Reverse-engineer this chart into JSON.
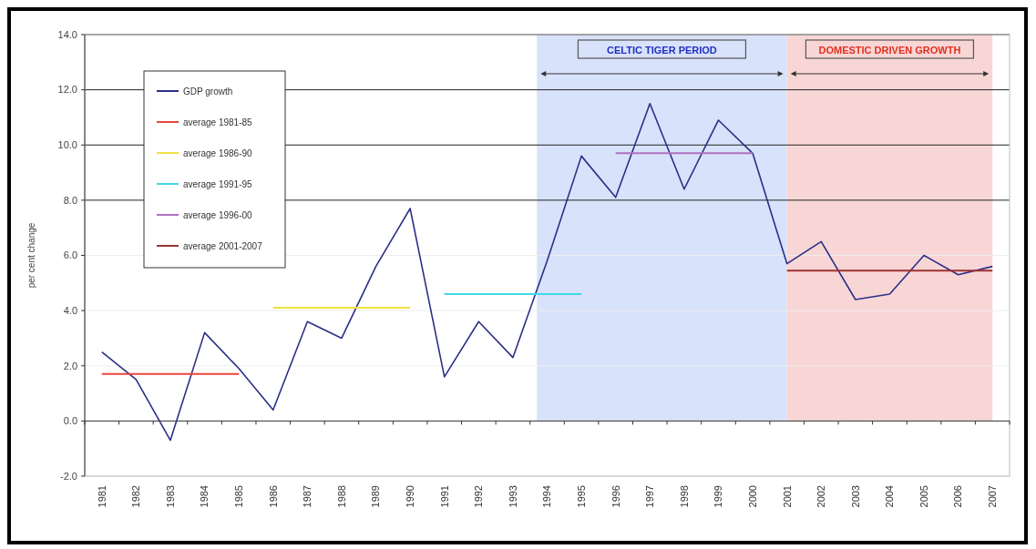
{
  "chart_data": {
    "type": "line",
    "ylabel": "per cent change",
    "categories": [
      "1981",
      "1982",
      "1983",
      "1984",
      "1985",
      "1986",
      "1987",
      "1988",
      "1989",
      "1990",
      "1991",
      "1992",
      "1993",
      "1994",
      "1995",
      "1996",
      "1997",
      "1998",
      "1999",
      "2000",
      "2001",
      "2002",
      "2003",
      "2004",
      "2005",
      "2006",
      "2007"
    ],
    "series": [
      {
        "name": "GDP growth",
        "color": "#2b2f86",
        "values": [
          2.5,
          1.5,
          -0.7,
          3.2,
          1.9,
          0.4,
          3.6,
          3.0,
          5.6,
          7.7,
          1.6,
          3.6,
          2.3,
          5.8,
          9.6,
          8.1,
          11.5,
          8.4,
          10.9,
          9.7,
          5.7,
          6.5,
          4.4,
          4.6,
          6.0,
          5.3,
          5.6
        ]
      },
      {
        "name": "average 1981-85",
        "color": "#e8453c",
        "values": [
          1.7,
          1.7,
          1.7,
          1.7,
          1.7,
          null,
          null,
          null,
          null,
          null,
          null,
          null,
          null,
          null,
          null,
          null,
          null,
          null,
          null,
          null,
          null,
          null,
          null,
          null,
          null,
          null,
          null
        ]
      },
      {
        "name": "average 1986-90",
        "color": "#f0e040",
        "values": [
          null,
          null,
          null,
          null,
          null,
          4.1,
          4.1,
          4.1,
          4.1,
          4.1,
          null,
          null,
          null,
          null,
          null,
          null,
          null,
          null,
          null,
          null,
          null,
          null,
          null,
          null,
          null,
          null,
          null
        ]
      },
      {
        "name": "average 1991-95",
        "color": "#40d8e8",
        "values": [
          null,
          null,
          null,
          null,
          null,
          null,
          null,
          null,
          null,
          null,
          4.6,
          4.6,
          4.6,
          4.6,
          4.6,
          null,
          null,
          null,
          null,
          null,
          null,
          null,
          null,
          null,
          null,
          null,
          null
        ]
      },
      {
        "name": "average 1996-00",
        "color": "#b070c0",
        "values": [
          null,
          null,
          null,
          null,
          null,
          null,
          null,
          null,
          null,
          null,
          null,
          null,
          null,
          null,
          null,
          9.7,
          9.7,
          9.7,
          9.7,
          9.7,
          null,
          null,
          null,
          null,
          null,
          null,
          null
        ]
      },
      {
        "name": "average 2001-2007",
        "color": "#a03030",
        "values": [
          null,
          null,
          null,
          null,
          null,
          null,
          null,
          null,
          null,
          null,
          null,
          null,
          null,
          null,
          null,
          null,
          null,
          null,
          null,
          null,
          5.45,
          5.45,
          5.45,
          5.45,
          5.45,
          5.45,
          5.45
        ]
      }
    ],
    "bands": [
      {
        "axis": "x",
        "from": "1994",
        "to": "2001",
        "label": "CELTIC TIGER PERIOD",
        "color": "#d8e2fa"
      },
      {
        "axis": "x",
        "from": "2001",
        "to": "2007",
        "label": "DOMESTIC DRIVEN GROWTH",
        "color": "#f8d6d6"
      }
    ],
    "ylim": [
      -2,
      14
    ],
    "yticks": [
      {
        "value": -2,
        "label": "-2.0"
      },
      {
        "value": 0,
        "label": "0.0"
      },
      {
        "value": 2,
        "label": "2.0"
      },
      {
        "value": 4,
        "label": "4.0"
      },
      {
        "value": 6,
        "label": "6.0"
      },
      {
        "value": 8,
        "label": "8.0"
      },
      {
        "value": 10,
        "label": "10.0"
      },
      {
        "value": 12,
        "label": "12.0"
      },
      {
        "value": 14,
        "label": "14.0"
      }
    ],
    "grid": "y",
    "legend": "top left",
    "marker": "none",
    "line_style": "solid"
  }
}
